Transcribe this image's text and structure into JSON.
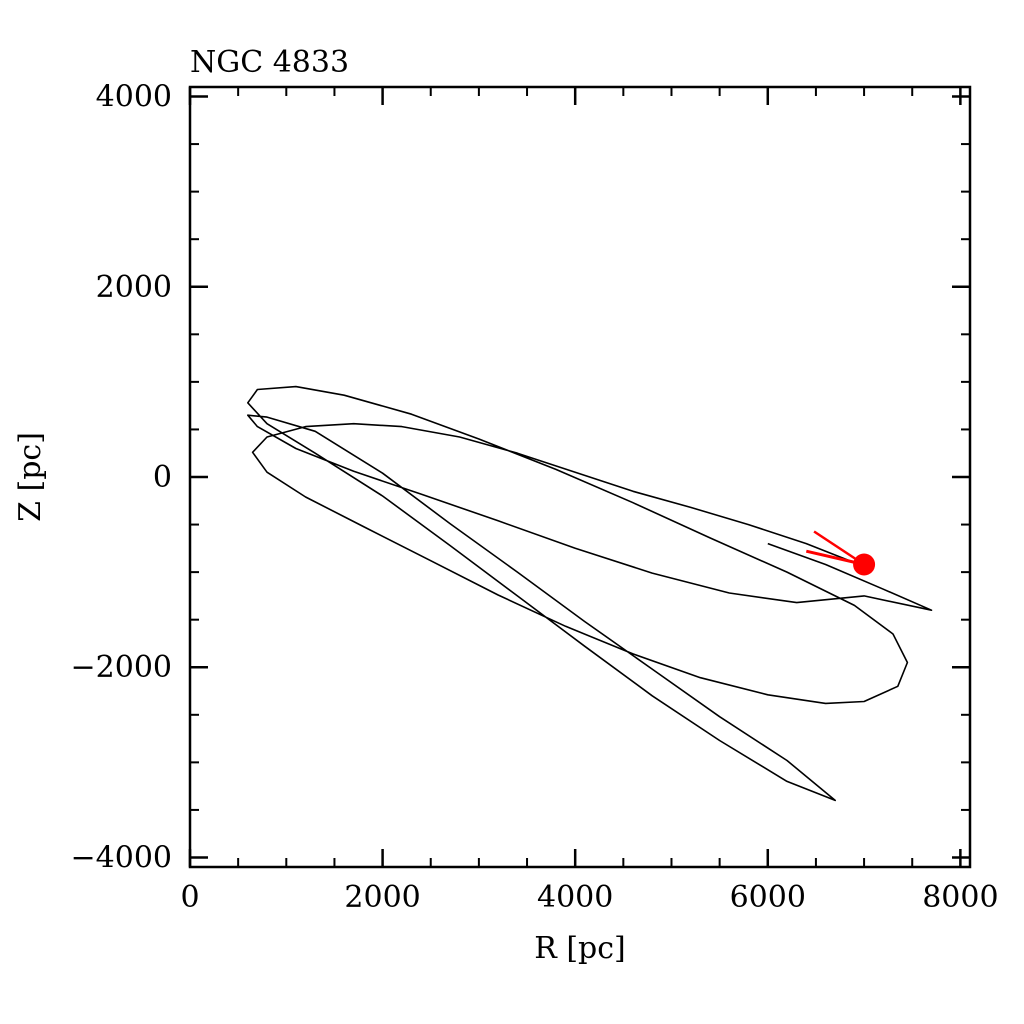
{
  "chart_data": {
    "type": "line",
    "title": "NGC 4833",
    "xlabel": "R [pc]",
    "ylabel": "Z [pc]",
    "xlim": [
      0,
      8100
    ],
    "ylim": [
      -4100,
      4100
    ],
    "x_ticks": [
      0,
      2000,
      4000,
      6000,
      8000
    ],
    "x_tick_labels": [
      "0",
      "2000",
      "4000",
      "6000",
      "8000"
    ],
    "y_ticks": [
      -4000,
      -2000,
      0,
      2000,
      4000
    ],
    "y_tick_labels": [
      "−4000",
      "−2000",
      "0",
      "2000",
      "4000"
    ],
    "x_minor_step": 500,
    "y_minor_step": 500,
    "grid": false,
    "colors": {
      "orbit": "#000000",
      "current_position": "#ff0000"
    },
    "series": [
      {
        "type": "orbit",
        "x": [
          6900,
          6400,
          5800,
          5200,
          4600,
          4000,
          3400,
          2800,
          2200,
          1700,
          1200,
          800,
          650,
          800,
          1200,
          1800,
          2500,
          3200,
          3900,
          4600,
          5300,
          6000,
          6600,
          7000,
          7350,
          7450,
          7300,
          6900,
          6200,
          5400,
          4600,
          3800,
          3000,
          2300,
          1600,
          1100,
          700,
          600,
          800,
          1300,
          2000,
          2700,
          3400,
          4100,
          4800,
          5500,
          6200,
          6700,
          6200,
          5500,
          4800,
          4100,
          3400,
          2700,
          2000,
          1300,
          800,
          600,
          700,
          1100,
          1700,
          2400,
          3200,
          4000,
          4800,
          5600,
          6300,
          7000,
          7700,
          7200,
          6600,
          6000
        ],
        "y": [
          -900,
          -700,
          -500,
          -320,
          -150,
          50,
          250,
          420,
          530,
          560,
          530,
          420,
          260,
          50,
          -210,
          -520,
          -880,
          -1240,
          -1570,
          -1860,
          -2110,
          -2290,
          -2380,
          -2360,
          -2200,
          -1950,
          -1650,
          -1350,
          -1000,
          -640,
          -270,
          80,
          400,
          660,
          860,
          950,
          920,
          780,
          560,
          250,
          -200,
          -720,
          -1250,
          -1780,
          -2300,
          -2770,
          -3200,
          -3400,
          -2980,
          -2520,
          -2020,
          -1520,
          -1000,
          -490,
          40,
          480,
          630,
          650,
          530,
          300,
          60,
          -180,
          -460,
          -750,
          -1010,
          -1220,
          -1320,
          -1250,
          -1400,
          -1180,
          -920,
          -700
        ]
      }
    ],
    "marker": {
      "x": 7000,
      "y": -920
    },
    "arrow": {
      "from": [
        6400,
        -780
      ],
      "to": [
        7000,
        -920
      ]
    }
  }
}
